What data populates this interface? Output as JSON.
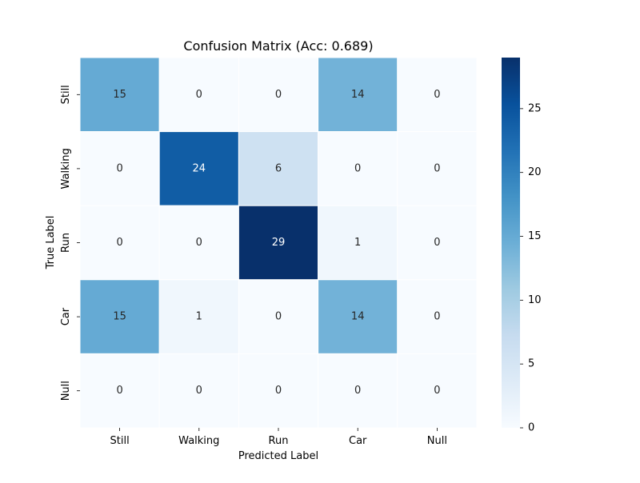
{
  "chart_data": {
    "type": "heatmap",
    "title": "Confusion Matrix (Acc: 0.689)",
    "xlabel": "Predicted Label",
    "ylabel": "True Label",
    "x_categories": [
      "Still",
      "Walking",
      "Run",
      "Car",
      "Null"
    ],
    "y_categories": [
      "Still",
      "Walking",
      "Run",
      "Car",
      "Null"
    ],
    "values": [
      [
        15,
        0,
        0,
        14,
        0
      ],
      [
        0,
        24,
        6,
        0,
        0
      ],
      [
        0,
        0,
        29,
        1,
        0
      ],
      [
        15,
        1,
        0,
        14,
        0
      ],
      [
        0,
        0,
        0,
        0,
        0
      ]
    ],
    "colorbar": {
      "min": 0,
      "max": 29,
      "ticks": [
        0,
        5,
        10,
        15,
        20,
        25
      ]
    },
    "colormap": "Blues",
    "colors": {
      "light": "#f7fbff",
      "dark": "#08306b"
    }
  }
}
